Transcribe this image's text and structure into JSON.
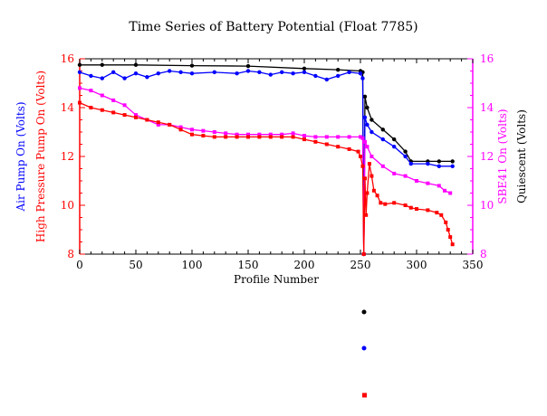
{
  "chart_data": {
    "type": "line",
    "title": "Time Series of Battery Potential (Float 7785)",
    "xlabel": "Profile Number",
    "left_axis_labels": [
      {
        "text": "Air Pump On (Volts)",
        "color": "#0000ff"
      },
      {
        "text": "High Pressure Pump On (Volts)",
        "color": "#ff0000"
      }
    ],
    "right_axis_labels": [
      {
        "text": "SBE41 On (Volts)",
        "color": "#ff00ff"
      },
      {
        "text": "Quiescent (Volts)",
        "color": "#000000"
      }
    ],
    "xlim": [
      0,
      350
    ],
    "ylim": [
      8,
      16
    ],
    "x_ticks": [
      "0",
      "50",
      "100",
      "150",
      "200",
      "250",
      "300",
      "350"
    ],
    "y_ticks_left": [
      "8",
      "10",
      "12",
      "14",
      "16"
    ],
    "y_ticks_right": [
      "8",
      "10",
      "12",
      "14",
      "16"
    ],
    "axis_colors": {
      "left": "#ff0000",
      "right": "#ff00ff",
      "bottom": "#000000"
    },
    "grid": false,
    "series": [
      {
        "color": "#000000",
        "marker": "circle",
        "points": [
          [
            0,
            15.75
          ],
          [
            20,
            15.75
          ],
          [
            50,
            15.75
          ],
          [
            100,
            15.72
          ],
          [
            150,
            15.7
          ],
          [
            200,
            15.6
          ],
          [
            230,
            15.55
          ],
          [
            250,
            15.5
          ],
          [
            252,
            15.45
          ],
          [
            253,
            8.0
          ],
          [
            254,
            14.45
          ],
          [
            256,
            14.0
          ],
          [
            260,
            13.5
          ],
          [
            270,
            13.1
          ],
          [
            280,
            12.7
          ],
          [
            290,
            12.2
          ],
          [
            295,
            11.8
          ],
          [
            310,
            11.8
          ],
          [
            320,
            11.8
          ],
          [
            332,
            11.8
          ]
        ]
      },
      {
        "color": "#0000ff",
        "marker": "circle",
        "points": [
          [
            0,
            15.45
          ],
          [
            10,
            15.3
          ],
          [
            20,
            15.2
          ],
          [
            30,
            15.45
          ],
          [
            40,
            15.2
          ],
          [
            50,
            15.4
          ],
          [
            60,
            15.25
          ],
          [
            70,
            15.4
          ],
          [
            80,
            15.5
          ],
          [
            90,
            15.45
          ],
          [
            100,
            15.4
          ],
          [
            120,
            15.45
          ],
          [
            140,
            15.4
          ],
          [
            150,
            15.5
          ],
          [
            160,
            15.45
          ],
          [
            170,
            15.35
          ],
          [
            180,
            15.45
          ],
          [
            190,
            15.4
          ],
          [
            200,
            15.45
          ],
          [
            210,
            15.3
          ],
          [
            220,
            15.15
          ],
          [
            230,
            15.3
          ],
          [
            240,
            15.45
          ],
          [
            250,
            15.4
          ],
          [
            252,
            15.2
          ],
          [
            253,
            8.0
          ],
          [
            254,
            13.6
          ],
          [
            256,
            13.3
          ],
          [
            260,
            13.0
          ],
          [
            270,
            12.7
          ],
          [
            280,
            12.4
          ],
          [
            290,
            12.0
          ],
          [
            295,
            11.7
          ],
          [
            310,
            11.7
          ],
          [
            320,
            11.6
          ],
          [
            332,
            11.6
          ]
        ]
      },
      {
        "color": "#ff00ff",
        "marker": "square",
        "points": [
          [
            0,
            14.8
          ],
          [
            10,
            14.7
          ],
          [
            20,
            14.5
          ],
          [
            30,
            14.3
          ],
          [
            40,
            14.1
          ],
          [
            50,
            13.7
          ],
          [
            60,
            13.5
          ],
          [
            70,
            13.3
          ],
          [
            80,
            13.3
          ],
          [
            90,
            13.2
          ],
          [
            100,
            13.1
          ],
          [
            110,
            13.05
          ],
          [
            120,
            13.0
          ],
          [
            130,
            12.95
          ],
          [
            140,
            12.9
          ],
          [
            150,
            12.9
          ],
          [
            160,
            12.9
          ],
          [
            170,
            12.9
          ],
          [
            180,
            12.9
          ],
          [
            190,
            12.95
          ],
          [
            200,
            12.85
          ],
          [
            210,
            12.8
          ],
          [
            220,
            12.8
          ],
          [
            230,
            12.8
          ],
          [
            240,
            12.8
          ],
          [
            250,
            12.8
          ],
          [
            252,
            12.75
          ],
          [
            253,
            8.0
          ],
          [
            254,
            12.6
          ],
          [
            256,
            12.4
          ],
          [
            260,
            12.0
          ],
          [
            270,
            11.6
          ],
          [
            280,
            11.3
          ],
          [
            290,
            11.2
          ],
          [
            300,
            11.0
          ],
          [
            310,
            10.9
          ],
          [
            320,
            10.8
          ],
          [
            325,
            10.6
          ],
          [
            330,
            10.5
          ]
        ]
      },
      {
        "color": "#ff0000",
        "marker": "square",
        "points": [
          [
            0,
            14.2
          ],
          [
            10,
            14.0
          ],
          [
            20,
            13.9
          ],
          [
            30,
            13.8
          ],
          [
            40,
            13.7
          ],
          [
            50,
            13.6
          ],
          [
            60,
            13.5
          ],
          [
            70,
            13.4
          ],
          [
            80,
            13.3
          ],
          [
            90,
            13.1
          ],
          [
            100,
            12.9
          ],
          [
            110,
            12.85
          ],
          [
            120,
            12.8
          ],
          [
            130,
            12.8
          ],
          [
            140,
            12.8
          ],
          [
            150,
            12.8
          ],
          [
            160,
            12.8
          ],
          [
            170,
            12.8
          ],
          [
            180,
            12.8
          ],
          [
            190,
            12.8
          ],
          [
            200,
            12.7
          ],
          [
            210,
            12.6
          ],
          [
            220,
            12.5
          ],
          [
            230,
            12.4
          ],
          [
            240,
            12.3
          ],
          [
            248,
            12.2
          ],
          [
            250,
            12.0
          ],
          [
            252,
            11.6
          ],
          [
            253,
            8.0
          ],
          [
            254,
            11.1
          ],
          [
            255,
            9.6
          ],
          [
            256,
            10.5
          ],
          [
            258,
            11.7
          ],
          [
            260,
            11.2
          ],
          [
            262,
            10.6
          ],
          [
            265,
            10.4
          ],
          [
            268,
            10.1
          ],
          [
            272,
            10.05
          ],
          [
            280,
            10.1
          ],
          [
            290,
            10.0
          ],
          [
            295,
            9.9
          ],
          [
            300,
            9.85
          ],
          [
            310,
            9.8
          ],
          [
            318,
            9.7
          ],
          [
            322,
            9.6
          ],
          [
            326,
            9.3
          ],
          [
            328,
            9.0
          ],
          [
            330,
            8.7
          ],
          [
            332,
            8.4
          ]
        ]
      }
    ],
    "legend": {
      "placement": "below plot",
      "markers": [
        "#000000",
        "#0000ff",
        "#ff0000"
      ]
    }
  }
}
